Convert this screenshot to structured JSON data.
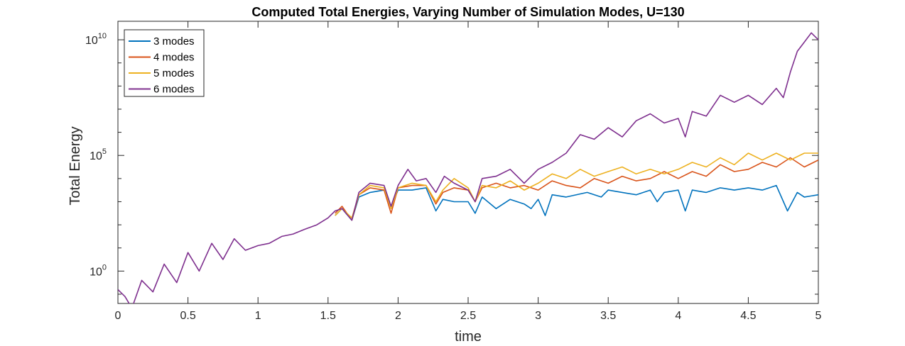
{
  "chart_data": {
    "type": "line",
    "title": "Computed Total Energies, Varying Number of Simulation Modes, U=130",
    "xlabel": "time",
    "ylabel": "Total Energy",
    "xlim": [
      0,
      5
    ],
    "ylim_log10": [
      -1.4,
      10.8
    ],
    "yscale": "log",
    "grid": false,
    "legend_position": "top-left",
    "x_ticks": [
      "0",
      "0.5",
      "1",
      "1.5",
      "2",
      "2.5",
      "3",
      "3.5",
      "4",
      "4.5",
      "5"
    ],
    "y_ticks": [
      {
        "base": "10",
        "exp": "0",
        "log10": 0
      },
      {
        "base": "10",
        "exp": "5",
        "log10": 5
      },
      {
        "base": "10",
        "exp": "10",
        "log10": 10
      }
    ],
    "series": [
      {
        "name": "3 modes",
        "color": "#0072BD",
        "points": [
          [
            1.55,
            2.4
          ],
          [
            1.6,
            2.7
          ],
          [
            1.67,
            2.2
          ],
          [
            1.72,
            3.2
          ],
          [
            1.8,
            3.4
          ],
          [
            1.9,
            3.5
          ],
          [
            1.95,
            2.8
          ],
          [
            2.0,
            3.5
          ],
          [
            2.1,
            3.5
          ],
          [
            2.2,
            3.6
          ],
          [
            2.27,
            2.6
          ],
          [
            2.32,
            3.1
          ],
          [
            2.4,
            3.0
          ],
          [
            2.5,
            3.0
          ],
          [
            2.55,
            2.5
          ],
          [
            2.6,
            3.2
          ],
          [
            2.7,
            2.7
          ],
          [
            2.8,
            3.1
          ],
          [
            2.9,
            2.9
          ],
          [
            2.95,
            2.7
          ],
          [
            3.0,
            3.1
          ],
          [
            3.05,
            2.4
          ],
          [
            3.1,
            3.3
          ],
          [
            3.2,
            3.2
          ],
          [
            3.35,
            3.4
          ],
          [
            3.45,
            3.2
          ],
          [
            3.5,
            3.5
          ],
          [
            3.6,
            3.4
          ],
          [
            3.7,
            3.3
          ],
          [
            3.8,
            3.5
          ],
          [
            3.85,
            3.0
          ],
          [
            3.9,
            3.4
          ],
          [
            4.0,
            3.5
          ],
          [
            4.05,
            2.6
          ],
          [
            4.1,
            3.5
          ],
          [
            4.2,
            3.4
          ],
          [
            4.3,
            3.6
          ],
          [
            4.4,
            3.5
          ],
          [
            4.5,
            3.6
          ],
          [
            4.6,
            3.5
          ],
          [
            4.7,
            3.7
          ],
          [
            4.78,
            2.6
          ],
          [
            4.85,
            3.4
          ],
          [
            4.9,
            3.2
          ],
          [
            5.0,
            3.3
          ]
        ]
      },
      {
        "name": "4 modes",
        "color": "#D95319",
        "points": [
          [
            1.55,
            2.5
          ],
          [
            1.6,
            2.8
          ],
          [
            1.67,
            2.2
          ],
          [
            1.72,
            3.3
          ],
          [
            1.8,
            3.6
          ],
          [
            1.9,
            3.5
          ],
          [
            1.95,
            2.5
          ],
          [
            2.0,
            3.6
          ],
          [
            2.1,
            3.7
          ],
          [
            2.2,
            3.7
          ],
          [
            2.27,
            2.9
          ],
          [
            2.32,
            3.4
          ],
          [
            2.4,
            3.6
          ],
          [
            2.5,
            3.5
          ],
          [
            2.55,
            3.0
          ],
          [
            2.6,
            3.6
          ],
          [
            2.7,
            3.8
          ],
          [
            2.8,
            3.6
          ],
          [
            2.9,
            3.7
          ],
          [
            3.0,
            3.5
          ],
          [
            3.1,
            3.9
          ],
          [
            3.2,
            3.7
          ],
          [
            3.3,
            3.6
          ],
          [
            3.4,
            4.0
          ],
          [
            3.5,
            3.8
          ],
          [
            3.6,
            4.1
          ],
          [
            3.7,
            3.9
          ],
          [
            3.8,
            4.0
          ],
          [
            3.9,
            4.3
          ],
          [
            4.0,
            4.0
          ],
          [
            4.1,
            4.3
          ],
          [
            4.2,
            4.1
          ],
          [
            4.3,
            4.6
          ],
          [
            4.4,
            4.3
          ],
          [
            4.5,
            4.4
          ],
          [
            4.6,
            4.7
          ],
          [
            4.7,
            4.5
          ],
          [
            4.8,
            4.9
          ],
          [
            4.9,
            4.5
          ],
          [
            5.0,
            4.8
          ]
        ]
      },
      {
        "name": "5 modes",
        "color": "#EDB120",
        "points": [
          [
            1.55,
            2.4
          ],
          [
            1.6,
            2.7
          ],
          [
            1.67,
            2.3
          ],
          [
            1.72,
            3.3
          ],
          [
            1.8,
            3.7
          ],
          [
            1.9,
            3.6
          ],
          [
            1.95,
            2.7
          ],
          [
            2.0,
            3.6
          ],
          [
            2.1,
            3.8
          ],
          [
            2.2,
            3.7
          ],
          [
            2.27,
            3.0
          ],
          [
            2.32,
            3.5
          ],
          [
            2.4,
            4.0
          ],
          [
            2.5,
            3.6
          ],
          [
            2.55,
            3.0
          ],
          [
            2.6,
            3.7
          ],
          [
            2.7,
            3.6
          ],
          [
            2.8,
            3.9
          ],
          [
            2.9,
            3.5
          ],
          [
            3.0,
            3.8
          ],
          [
            3.1,
            4.2
          ],
          [
            3.2,
            4.0
          ],
          [
            3.3,
            4.4
          ],
          [
            3.4,
            4.1
          ],
          [
            3.5,
            4.3
          ],
          [
            3.6,
            4.5
          ],
          [
            3.7,
            4.2
          ],
          [
            3.8,
            4.4
          ],
          [
            3.9,
            4.2
          ],
          [
            4.0,
            4.4
          ],
          [
            4.1,
            4.7
          ],
          [
            4.2,
            4.5
          ],
          [
            4.3,
            4.9
          ],
          [
            4.4,
            4.6
          ],
          [
            4.5,
            5.1
          ],
          [
            4.6,
            4.8
          ],
          [
            4.7,
            5.1
          ],
          [
            4.8,
            4.8
          ],
          [
            4.9,
            5.1
          ],
          [
            5.0,
            5.1
          ]
        ]
      },
      {
        "name": "6 modes",
        "color": "#7E2F8E",
        "points": [
          [
            0.0,
            -0.8
          ],
          [
            0.05,
            -1.1
          ],
          [
            0.1,
            -1.6
          ],
          [
            0.17,
            -0.4
          ],
          [
            0.25,
            -0.9
          ],
          [
            0.33,
            0.3
          ],
          [
            0.42,
            -0.5
          ],
          [
            0.5,
            0.8
          ],
          [
            0.58,
            0.0
          ],
          [
            0.67,
            1.2
          ],
          [
            0.75,
            0.5
          ],
          [
            0.83,
            1.4
          ],
          [
            0.91,
            0.9
          ],
          [
            1.0,
            1.1
          ],
          [
            1.08,
            1.2
          ],
          [
            1.17,
            1.5
          ],
          [
            1.25,
            1.6
          ],
          [
            1.33,
            1.8
          ],
          [
            1.42,
            2.0
          ],
          [
            1.5,
            2.3
          ],
          [
            1.55,
            2.6
          ],
          [
            1.6,
            2.7
          ],
          [
            1.67,
            2.2
          ],
          [
            1.72,
            3.4
          ],
          [
            1.8,
            3.8
          ],
          [
            1.9,
            3.7
          ],
          [
            1.95,
            2.8
          ],
          [
            2.0,
            3.7
          ],
          [
            2.07,
            4.4
          ],
          [
            2.13,
            3.9
          ],
          [
            2.2,
            4.0
          ],
          [
            2.27,
            3.4
          ],
          [
            2.33,
            4.1
          ],
          [
            2.4,
            3.8
          ],
          [
            2.5,
            3.5
          ],
          [
            2.55,
            3.0
          ],
          [
            2.6,
            4.0
          ],
          [
            2.7,
            4.1
          ],
          [
            2.8,
            4.4
          ],
          [
            2.9,
            3.8
          ],
          [
            3.0,
            4.4
          ],
          [
            3.1,
            4.7
          ],
          [
            3.2,
            5.1
          ],
          [
            3.3,
            5.9
          ],
          [
            3.4,
            5.7
          ],
          [
            3.5,
            6.2
          ],
          [
            3.6,
            5.8
          ],
          [
            3.7,
            6.5
          ],
          [
            3.8,
            6.8
          ],
          [
            3.9,
            6.4
          ],
          [
            4.0,
            6.6
          ],
          [
            4.05,
            5.8
          ],
          [
            4.1,
            6.9
          ],
          [
            4.2,
            6.7
          ],
          [
            4.3,
            7.6
          ],
          [
            4.4,
            7.3
          ],
          [
            4.5,
            7.6
          ],
          [
            4.6,
            7.2
          ],
          [
            4.7,
            7.9
          ],
          [
            4.75,
            7.5
          ],
          [
            4.8,
            8.6
          ],
          [
            4.85,
            9.5
          ],
          [
            4.9,
            9.9
          ],
          [
            4.95,
            10.3
          ],
          [
            5.0,
            10.0
          ]
        ]
      }
    ]
  }
}
